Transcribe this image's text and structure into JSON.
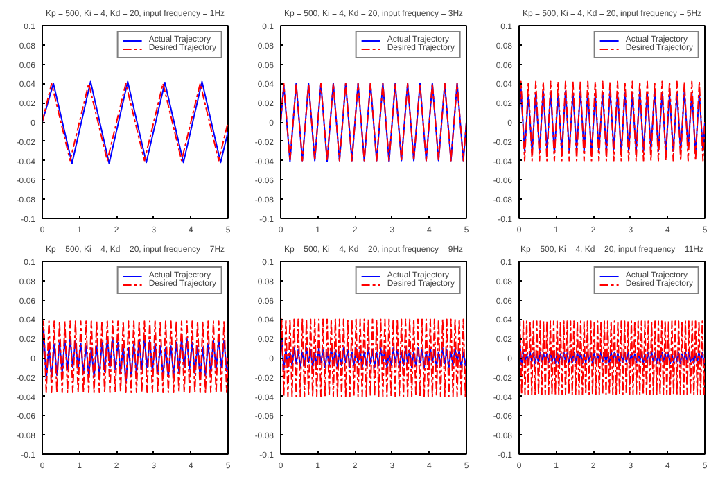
{
  "chart_data": [
    {
      "type": "line",
      "title": "Kp = 500, Ki = 4, Kd = 20, input frequency = 1Hz",
      "xlim": [
        0,
        5
      ],
      "ylim": [
        -0.1,
        0.1
      ],
      "xticks": [
        0,
        1,
        2,
        3,
        4,
        5
      ],
      "yticks": [
        -0.1,
        -0.08,
        -0.06,
        -0.04,
        -0.02,
        0,
        0.02,
        0.04,
        0.06,
        0.08,
        0.1
      ],
      "grid": false,
      "legend": "top right",
      "x": [
        0,
        0.25,
        0.75,
        1.25,
        1.75,
        2.25,
        2.75,
        3.25,
        3.75,
        4.25,
        4.75,
        5
      ],
      "series": [
        {
          "name": "Actual Trajectory",
          "color": "#0000ff",
          "line_style": "solid",
          "x": [
            0,
            0.3,
            0.8,
            1.3,
            1.8,
            2.3,
            2.8,
            3.3,
            3.8,
            4.3,
            4.8,
            5
          ],
          "values": [
            0,
            0.04,
            -0.043,
            0.042,
            -0.043,
            0.042,
            -0.042,
            0.041,
            -0.042,
            0.042,
            -0.042,
            -0.01
          ]
        },
        {
          "name": "Desired Trajectory",
          "color": "#ff0000",
          "line_style": "dashed",
          "values": [
            0,
            0.04,
            -0.04,
            0.04,
            -0.04,
            0.04,
            -0.04,
            0.04,
            -0.04,
            0.04,
            -0.04,
            0
          ]
        }
      ]
    },
    {
      "type": "line",
      "title": "Kp = 500, Ki = 4, Kd = 20, input frequency = 3Hz",
      "xlim": [
        0,
        5
      ],
      "ylim": [
        -0.1,
        0.1
      ],
      "xticks": [
        0,
        1,
        2,
        3,
        4,
        5
      ],
      "yticks": [
        -0.1,
        -0.08,
        -0.06,
        -0.04,
        -0.02,
        0,
        0.02,
        0.04,
        0.06,
        0.08,
        0.1
      ],
      "grid": false,
      "legend": "top right",
      "x": [
        0,
        0.083,
        0.25,
        0.417,
        0.583,
        0.75,
        0.917,
        1.083,
        1.25,
        1.417,
        1.583,
        1.75,
        1.917,
        2.083,
        2.25,
        2.417,
        2.583,
        2.75,
        2.917,
        3.083,
        3.25,
        3.417,
        3.583,
        3.75,
        3.917,
        4.083,
        4.25,
        4.417,
        4.583,
        4.75,
        4.917,
        5
      ],
      "series": [
        {
          "name": "Actual Trajectory",
          "color": "#0000ff",
          "line_style": "solid",
          "values": [
            0,
            0.038,
            -0.041,
            0.04,
            -0.04,
            0.04,
            -0.04,
            0.04,
            -0.041,
            0.04,
            -0.04,
            0.04,
            -0.04,
            0.04,
            -0.04,
            0.04,
            -0.04,
            0.04,
            -0.041,
            0.04,
            -0.04,
            0.04,
            -0.04,
            0.04,
            -0.04,
            0.04,
            -0.04,
            0.04,
            -0.04,
            0.04,
            -0.04,
            0
          ]
        },
        {
          "name": "Desired Trajectory",
          "color": "#ff0000",
          "line_style": "dashed",
          "values": [
            0,
            0.04,
            -0.04,
            0.04,
            -0.04,
            0.04,
            -0.04,
            0.04,
            -0.04,
            0.04,
            -0.04,
            0.04,
            -0.04,
            0.04,
            -0.04,
            0.04,
            -0.04,
            0.04,
            -0.04,
            0.04,
            -0.04,
            0.04,
            -0.04,
            0.04,
            -0.04,
            0.04,
            -0.04,
            0.04,
            -0.04,
            0.04,
            -0.04,
            0
          ]
        }
      ]
    },
    {
      "type": "line",
      "title": "Kp = 500, Ki = 4, Kd = 20, input frequency = 5Hz",
      "xlim": [
        0,
        5
      ],
      "ylim": [
        -0.1,
        0.1
      ],
      "xticks": [
        0,
        1,
        2,
        3,
        4,
        5
      ],
      "yticks": [
        -0.1,
        -0.08,
        -0.06,
        -0.04,
        -0.02,
        0,
        0.02,
        0.04,
        0.06,
        0.08,
        0.1
      ],
      "grid": false,
      "legend": "top right",
      "x": [
        0,
        0.05,
        0.15,
        0.25,
        0.35,
        0.45,
        0.55,
        0.65,
        0.75,
        0.85,
        0.95,
        1.05,
        1.15,
        1.25,
        1.35,
        1.45,
        1.55,
        1.65,
        1.75,
        1.85,
        1.95,
        2.05,
        2.15,
        2.25,
        2.35,
        2.45,
        2.55,
        2.65,
        2.75,
        2.85,
        2.95,
        3.05,
        3.15,
        3.25,
        3.35,
        3.45,
        3.55,
        3.65,
        3.75,
        3.85,
        3.95,
        4.05,
        4.15,
        4.25,
        4.35,
        4.45,
        4.55,
        4.65,
        4.75,
        4.85,
        4.95,
        5
      ],
      "series": [
        {
          "name": "Actual Trajectory",
          "color": "#0000ff",
          "line_style": "solid",
          "values": [
            0,
            0.035,
            -0.03,
            0.028,
            -0.032,
            0.03,
            -0.03,
            0.032,
            -0.028,
            0.03,
            -0.032,
            0.028,
            -0.03,
            0.032,
            -0.03,
            0.03,
            -0.028,
            0.032,
            -0.03,
            0.03,
            -0.032,
            0.028,
            -0.03,
            0.03,
            -0.03,
            0.032,
            -0.028,
            0.03,
            -0.032,
            0.03,
            -0.03,
            0.028,
            -0.03,
            0.032,
            -0.03,
            0.03,
            -0.028,
            0.032,
            -0.03,
            0.03,
            -0.032,
            0.028,
            -0.03,
            0.03,
            -0.03,
            0.032,
            -0.028,
            0.03,
            -0.032,
            0.03,
            -0.03,
            0
          ]
        },
        {
          "name": "Desired Trajectory",
          "color": "#ff0000",
          "line_style": "dashed",
          "values": [
            0,
            0.042,
            -0.04,
            0.042,
            -0.04,
            0.042,
            -0.04,
            0.042,
            -0.04,
            0.042,
            -0.04,
            0.042,
            -0.04,
            0.042,
            -0.04,
            0.042,
            -0.04,
            0.042,
            -0.04,
            0.042,
            -0.04,
            0.042,
            -0.04,
            0.042,
            -0.04,
            0.042,
            -0.04,
            0.042,
            -0.04,
            0.042,
            -0.04,
            0.042,
            -0.04,
            0.042,
            -0.04,
            0.042,
            -0.04,
            0.042,
            -0.04,
            0.042,
            -0.04,
            0.042,
            -0.04,
            0.042,
            -0.04,
            0.042,
            -0.04,
            0.042,
            -0.04,
            0.042,
            -0.04,
            0
          ]
        }
      ]
    },
    {
      "type": "line",
      "title": "Kp = 500, Ki = 4, Kd = 20, input frequency = 7Hz",
      "xlim": [
        0,
        5
      ],
      "ylim": [
        -0.1,
        0.1
      ],
      "xticks": [
        0,
        1,
        2,
        3,
        4,
        5
      ],
      "yticks": [
        -0.1,
        -0.08,
        -0.06,
        -0.04,
        -0.02,
        0,
        0.02,
        0.04,
        0.06,
        0.08,
        0.1
      ],
      "grid": false,
      "legend": "top right",
      "x": [
        0,
        0.036,
        0.107,
        0.179,
        0.25,
        0.321,
        0.393,
        0.464,
        0.536,
        0.607,
        0.679,
        0.75,
        0.821,
        0.893,
        0.964,
        1.036,
        1.107,
        1.179,
        1.25,
        1.321,
        1.393,
        1.464,
        1.536,
        1.607,
        1.679,
        1.75,
        1.821,
        1.893,
        1.964,
        2.036,
        2.107,
        2.179,
        2.25,
        2.321,
        2.393,
        2.464,
        2.536,
        2.607,
        2.679,
        2.75,
        2.821,
        2.893,
        2.964,
        3.036,
        3.107,
        3.179,
        3.25,
        3.321,
        3.393,
        3.464,
        3.536,
        3.607,
        3.679,
        3.75,
        3.821,
        3.893,
        3.964,
        4.036,
        4.107,
        4.179,
        4.25,
        4.321,
        4.393,
        4.464,
        4.536,
        4.607,
        4.679,
        4.75,
        4.821,
        4.893,
        4.964,
        5
      ],
      "series": [
        {
          "name": "Actual Trajectory",
          "color": "#0000ff",
          "line_style": "solid",
          "values": [
            0,
            0.03,
            -0.022,
            0.012,
            -0.02,
            0.014,
            -0.018,
            0.016,
            -0.015,
            0.018,
            -0.012,
            0.02,
            -0.01,
            0.018,
            -0.012,
            0.015,
            -0.016,
            0.012,
            -0.018,
            0.01,
            -0.02,
            0.012,
            -0.018,
            0.016,
            -0.014,
            0.02,
            -0.01,
            0.02,
            -0.012,
            0.016,
            -0.016,
            0.012,
            -0.026,
            0.01,
            -0.018,
            0.014,
            -0.016,
            0.018,
            -0.012,
            0.02,
            -0.01,
            0.018,
            -0.014,
            0.015,
            -0.016,
            0.012,
            -0.018,
            0.01,
            -0.02,
            0.012,
            -0.018,
            0.016,
            -0.014,
            0.02,
            -0.01,
            0.02,
            -0.012,
            0.016,
            -0.016,
            0.012,
            -0.02,
            0.01,
            -0.018,
            0.014,
            -0.016,
            0.018,
            -0.012,
            0.02,
            -0.01,
            0.018,
            -0.014,
            -0.008
          ]
        },
        {
          "name": "Desired Trajectory",
          "color": "#ff0000",
          "line_style": "dashed",
          "values": [
            0,
            0.038,
            -0.036,
            0.038,
            -0.036,
            0.038,
            -0.036,
            0.038,
            -0.036,
            0.038,
            -0.036,
            0.038,
            -0.036,
            0.038,
            -0.036,
            0.038,
            -0.036,
            0.038,
            -0.036,
            0.038,
            -0.036,
            0.038,
            -0.036,
            0.038,
            -0.036,
            0.038,
            -0.036,
            0.038,
            -0.036,
            0.038,
            -0.036,
            0.038,
            -0.036,
            0.038,
            -0.036,
            0.038,
            -0.036,
            0.038,
            -0.036,
            0.038,
            -0.036,
            0.038,
            -0.036,
            0.038,
            -0.036,
            0.038,
            -0.036,
            0.038,
            -0.036,
            0.038,
            -0.036,
            0.038,
            -0.036,
            0.038,
            -0.036,
            0.038,
            -0.036,
            0.038,
            -0.036,
            0.038,
            -0.036,
            0.038,
            -0.036,
            0.038,
            -0.036,
            0.038,
            -0.036,
            0.038,
            -0.036,
            0.038,
            -0.036,
            0
          ]
        }
      ]
    },
    {
      "type": "line",
      "title": "Kp = 500, Ki = 4, Kd = 20, input frequency = 9Hz",
      "xlim": [
        0,
        5
      ],
      "ylim": [
        -0.1,
        0.1
      ],
      "xticks": [
        0,
        1,
        2,
        3,
        4,
        5
      ],
      "yticks": [
        -0.1,
        -0.08,
        -0.06,
        -0.04,
        -0.02,
        0,
        0.02,
        0.04,
        0.06,
        0.08,
        0.1
      ],
      "grid": false,
      "legend": "top right",
      "x": [
        0,
        0.028,
        0.083,
        0.139,
        0.194,
        0.25,
        0.306,
        0.361,
        0.417,
        0.472,
        0.528,
        0.583,
        0.639,
        0.694,
        0.75,
        0.806,
        0.861,
        0.917,
        0.972,
        1.028,
        1.083,
        1.139,
        1.194,
        1.25,
        1.306,
        1.361,
        1.417,
        1.472,
        1.528,
        1.583,
        1.639,
        1.694,
        1.75,
        1.806,
        1.861,
        1.917,
        1.972,
        2.028,
        2.083,
        2.139,
        2.194,
        2.25,
        2.306,
        2.361,
        2.417,
        2.472,
        2.528,
        2.583,
        2.639,
        2.694,
        2.75,
        2.806,
        2.861,
        2.917,
        2.972,
        3.028,
        3.083,
        3.139,
        3.194,
        3.25,
        3.306,
        3.361,
        3.417,
        3.472,
        3.528,
        3.583,
        3.639,
        3.694,
        3.75,
        3.806,
        3.861,
        3.917,
        3.972,
        4.028,
        4.083,
        4.139,
        4.194,
        4.25,
        4.306,
        4.361,
        4.417,
        4.472,
        4.528,
        4.583,
        4.639,
        4.694,
        4.75,
        4.806,
        4.861,
        4.917,
        4.972,
        5
      ],
      "series": [
        {
          "name": "Actual Trajectory",
          "color": "#0000ff",
          "line_style": "solid",
          "values": [
            0,
            0.022,
            -0.012,
            0.008,
            -0.01,
            0.006,
            -0.008,
            0.01,
            -0.006,
            0.008,
            -0.01,
            0.006,
            -0.008,
            0.01,
            -0.005,
            0.008,
            -0.01,
            0.006,
            -0.008,
            0.01,
            -0.005,
            0.008,
            -0.01,
            0.006,
            -0.008,
            0.01,
            -0.006,
            0.008,
            -0.01,
            0.006,
            -0.008,
            0.01,
            -0.005,
            0.008,
            -0.01,
            0.006,
            -0.008,
            0.01,
            -0.005,
            0.008,
            -0.01,
            0.006,
            -0.008,
            0.01,
            -0.006,
            0.008,
            -0.01,
            0.006,
            -0.008,
            0.01,
            -0.005,
            0.008,
            -0.01,
            0.006,
            -0.008,
            0.01,
            -0.005,
            0.008,
            -0.01,
            0.006,
            -0.008,
            0.01,
            -0.006,
            0.008,
            -0.01,
            0.006,
            -0.008,
            0.01,
            -0.005,
            0.008,
            -0.01,
            0.006,
            -0.008,
            0.01,
            -0.005,
            0.008,
            -0.01,
            0.006,
            -0.008,
            0.01,
            -0.006,
            0.008,
            -0.01,
            0.006,
            -0.008,
            0.01,
            -0.005,
            0.008,
            -0.01,
            0.006,
            -0.008,
            0
          ]
        },
        {
          "name": "Desired Trajectory",
          "color": "#ff0000",
          "line_style": "dashed",
          "values": [
            0,
            0.04,
            -0.04,
            0.04,
            -0.04,
            0.04,
            -0.04,
            0.04,
            -0.04,
            0.04,
            -0.04,
            0.04,
            -0.04,
            0.04,
            -0.04,
            0.04,
            -0.04,
            0.04,
            -0.04,
            0.04,
            -0.04,
            0.04,
            -0.04,
            0.04,
            -0.04,
            0.04,
            -0.04,
            0.04,
            -0.04,
            0.04,
            -0.04,
            0.04,
            -0.04,
            0.04,
            -0.04,
            0.04,
            -0.04,
            0.04,
            -0.04,
            0.04,
            -0.04,
            0.04,
            -0.04,
            0.04,
            -0.04,
            0.04,
            -0.04,
            0.04,
            -0.04,
            0.04,
            -0.04,
            0.04,
            -0.04,
            0.04,
            -0.04,
            0.04,
            -0.04,
            0.04,
            -0.04,
            0.04,
            -0.04,
            0.04,
            -0.04,
            0.04,
            -0.04,
            0.04,
            -0.04,
            0.04,
            -0.04,
            0.04,
            -0.04,
            0.04,
            -0.04,
            0.04,
            -0.04,
            0.04,
            -0.04,
            0.04,
            -0.04,
            0.04,
            -0.04,
            0.04,
            -0.04,
            0.04,
            -0.04,
            0.04,
            -0.04,
            0.04,
            -0.04,
            0.04,
            -0.04,
            0
          ]
        }
      ]
    },
    {
      "type": "line",
      "title": "Kp = 500, Ki = 4, Kd = 20, input frequency = 11Hz",
      "xlim": [
        0,
        5
      ],
      "ylim": [
        -0.1,
        0.1
      ],
      "xticks": [
        0,
        1,
        2,
        3,
        4,
        5
      ],
      "yticks": [
        -0.1,
        -0.08,
        -0.06,
        -0.04,
        -0.02,
        0,
        0.02,
        0.04,
        0.06,
        0.08,
        0.1
      ],
      "grid": false,
      "legend": "top right",
      "x": [
        0,
        0.023,
        0.068,
        0.114,
        0.159,
        0.205,
        0.25,
        0.295,
        0.341,
        0.386,
        0.432,
        0.477,
        0.523,
        0.568,
        0.614,
        0.659,
        0.705,
        0.75,
        0.795,
        0.841,
        0.886,
        0.932,
        0.977,
        1.023,
        1.068,
        1.114,
        1.159,
        1.205,
        1.25,
        1.295,
        1.341,
        1.386,
        1.432,
        1.477,
        1.523,
        1.568,
        1.614,
        1.659,
        1.705,
        1.75,
        1.795,
        1.841,
        1.886,
        1.932,
        1.977,
        2.023,
        2.068,
        2.114,
        2.159,
        2.205,
        2.25,
        2.295,
        2.341,
        2.386,
        2.432,
        2.477,
        2.523,
        2.568,
        2.614,
        2.659,
        2.705,
        2.75,
        2.795,
        2.841,
        2.886,
        2.932,
        2.977,
        3.023,
        3.068,
        3.114,
        3.159,
        3.205,
        3.25,
        3.295,
        3.341,
        3.386,
        3.432,
        3.477,
        3.523,
        3.568,
        3.614,
        3.659,
        3.705,
        3.75,
        3.795,
        3.841,
        3.886,
        3.932,
        3.977,
        4.023,
        4.068,
        4.114,
        4.159,
        4.205,
        4.25,
        4.295,
        4.341,
        4.386,
        4.432,
        4.477,
        4.523,
        4.568,
        4.614,
        4.659,
        4.705,
        4.75,
        4.795,
        4.841,
        4.886,
        4.932,
        4.977,
        5
      ],
      "series": [
        {
          "name": "Actual Trajectory",
          "color": "#0000ff",
          "line_style": "solid",
          "values": [
            0,
            0.015,
            -0.008,
            0.005,
            -0.006,
            0.004,
            -0.005,
            0.006,
            -0.004,
            0.005,
            -0.006,
            0.004,
            -0.005,
            0.006,
            -0.004,
            0.005,
            -0.006,
            0.004,
            -0.005,
            0.006,
            -0.004,
            0.005,
            -0.006,
            0.005,
            -0.006,
            0.004,
            -0.005,
            0.006,
            -0.004,
            0.005,
            -0.006,
            0.004,
            -0.005,
            0.006,
            -0.005,
            0.006,
            -0.004,
            0.005,
            -0.006,
            0.004,
            -0.005,
            0.006,
            -0.004,
            0.005,
            -0.006,
            0.005,
            -0.006,
            0.004,
            -0.005,
            0.006,
            -0.004,
            0.005,
            -0.006,
            0.004,
            -0.005,
            0.006,
            -0.005,
            0.006,
            -0.004,
            0.005,
            -0.006,
            0.004,
            -0.005,
            0.006,
            -0.004,
            0.005,
            -0.006,
            0.005,
            -0.006,
            0.004,
            -0.005,
            0.006,
            -0.004,
            0.005,
            -0.006,
            0.004,
            -0.005,
            0.006,
            -0.005,
            0.006,
            -0.004,
            0.005,
            -0.006,
            0.004,
            -0.005,
            0.006,
            -0.004,
            0.005,
            -0.006,
            0.005,
            -0.006,
            0.004,
            -0.005,
            0.006,
            -0.004,
            0.005,
            -0.006,
            0.004,
            -0.005,
            0.006,
            -0.005,
            0.006,
            -0.004,
            0.005,
            -0.006,
            0.004,
            -0.005,
            0.006,
            -0.004,
            0.005,
            -0.006,
            0
          ]
        },
        {
          "name": "Desired Trajectory",
          "color": "#ff0000",
          "line_style": "dashed",
          "values": [
            0,
            0.038,
            -0.038,
            0.038,
            -0.038,
            0.038,
            -0.038,
            0.038,
            -0.038,
            0.038,
            -0.038,
            0.038,
            -0.038,
            0.038,
            -0.038,
            0.038,
            -0.038,
            0.038,
            -0.038,
            0.038,
            -0.038,
            0.038,
            -0.038,
            0.038,
            -0.038,
            0.038,
            -0.038,
            0.038,
            -0.038,
            0.038,
            -0.038,
            0.038,
            -0.038,
            0.038,
            -0.038,
            0.038,
            -0.038,
            0.038,
            -0.038,
            0.038,
            -0.038,
            0.038,
            -0.038,
            0.038,
            -0.038,
            0.038,
            -0.038,
            0.038,
            -0.038,
            0.038,
            -0.038,
            0.038,
            -0.038,
            0.038,
            -0.038,
            0.038,
            -0.038,
            0.038,
            -0.038,
            0.038,
            -0.038,
            0.038,
            -0.038,
            0.038,
            -0.038,
            0.038,
            -0.038,
            0.038,
            -0.038,
            0.038,
            -0.038,
            0.038,
            -0.038,
            0.038,
            -0.038,
            0.038,
            -0.038,
            0.038,
            -0.038,
            0.038,
            -0.038,
            0.038,
            -0.038,
            0.038,
            -0.038,
            0.038,
            -0.038,
            0.038,
            -0.038,
            0.038,
            -0.038,
            0.038,
            -0.038,
            0.038,
            -0.038,
            0.038,
            -0.038,
            0.038,
            -0.038,
            0.038,
            -0.038,
            0.038,
            -0.038,
            0.038,
            -0.038,
            0.038,
            -0.038,
            0.038,
            -0.038,
            0.038,
            -0.038,
            0
          ]
        }
      ]
    }
  ]
}
